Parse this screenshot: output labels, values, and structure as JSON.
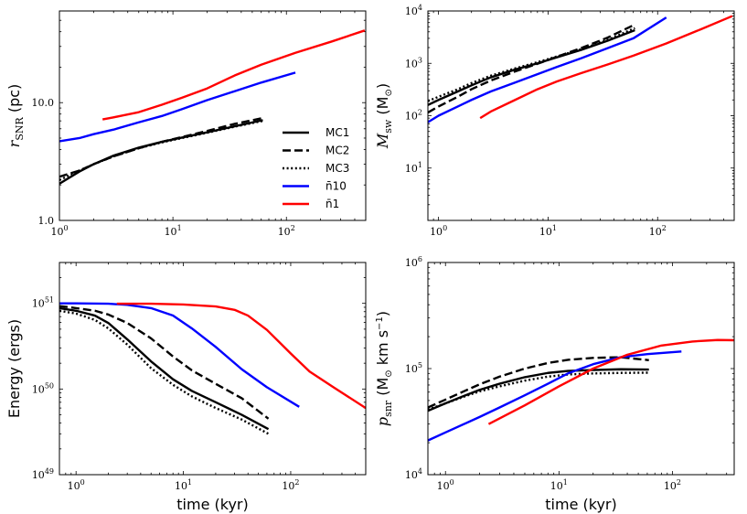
{
  "chart_data": [
    {
      "id": "p1",
      "type": "line",
      "xscale": "log",
      "yscale": "log",
      "xlim": [
        1,
        500
      ],
      "ylim": [
        1,
        60
      ],
      "xlabel": "",
      "ylabel": "r_SNR (pc)",
      "ylabel_parts": {
        "var": "r",
        "sub": "SNR",
        "unit": " (pc)"
      },
      "xticks": [
        {
          "v": 1,
          "b": "10",
          "e": "0"
        },
        {
          "v": 10,
          "b": "10",
          "e": "1"
        },
        {
          "v": 100,
          "b": "10",
          "e": "2"
        }
      ],
      "yticks": [
        {
          "v": 1,
          "t": "1.0"
        },
        {
          "v": 10,
          "t": "10.0"
        }
      ],
      "legend": {
        "position": "center-right",
        "entries": [
          {
            "label": "MC1",
            "color": "#000000",
            "dash": "solid"
          },
          {
            "label": "MC2",
            "color": "#000000",
            "dash": "dashed"
          },
          {
            "label": "MC3",
            "color": "#000000",
            "dash": "dotted"
          },
          {
            "label": "n̄10",
            "color": "#0000ff",
            "dash": "solid"
          },
          {
            "label": "n̄1",
            "color": "#ff0000",
            "dash": "solid"
          }
        ]
      },
      "series": [
        {
          "name": "MC1",
          "color": "#000000",
          "dash": "solid",
          "x": [
            1,
            1.5,
            2,
            3,
            5,
            8,
            12,
            20,
            35,
            62
          ],
          "y": [
            2.05,
            2.6,
            3.0,
            3.55,
            4.15,
            4.65,
            5.05,
            5.6,
            6.3,
            7.1
          ]
        },
        {
          "name": "MC2",
          "color": "#000000",
          "dash": "dashed",
          "x": [
            1,
            1.5,
            2,
            3,
            5,
            8,
            12,
            20,
            35,
            62
          ],
          "y": [
            2.35,
            2.65,
            3.0,
            3.5,
            4.1,
            4.65,
            5.1,
            5.75,
            6.6,
            7.4
          ]
        },
        {
          "name": "MC3",
          "color": "#000000",
          "dash": "dotted",
          "x": [
            1,
            1.5,
            2,
            3,
            5,
            8,
            12,
            20,
            35,
            62
          ],
          "y": [
            2.2,
            2.65,
            3.0,
            3.5,
            4.1,
            4.6,
            5.0,
            5.55,
            6.25,
            7.0
          ]
        },
        {
          "name": "n̄10",
          "color": "#0000ff",
          "dash": "solid",
          "x": [
            1,
            1.5,
            2,
            3,
            5,
            8,
            12,
            20,
            35,
            60,
            120
          ],
          "y": [
            4.7,
            5.0,
            5.4,
            5.9,
            6.8,
            7.7,
            8.8,
            10.5,
            12.5,
            14.8,
            18.0
          ]
        },
        {
          "name": "n̄1",
          "color": "#ff0000",
          "dash": "solid",
          "x": [
            2.4,
            3,
            5,
            8,
            12,
            20,
            35,
            60,
            120,
            250,
            490
          ],
          "y": [
            7.2,
            7.5,
            8.3,
            9.6,
            11.0,
            13.2,
            17.0,
            21.0,
            26.5,
            33.0,
            41.0
          ]
        }
      ]
    },
    {
      "id": "p2",
      "type": "line",
      "xscale": "log",
      "yscale": "log",
      "xlim": [
        0.8,
        500
      ],
      "ylim": [
        1,
        10000
      ],
      "xlabel": "",
      "ylabel": "M_sw (M_⊙)",
      "ylabel_parts": {
        "var": "M",
        "sub": "sw",
        "unit": " (M",
        "sun": "⊙",
        "close": ")"
      },
      "xticks": [
        {
          "v": 1,
          "b": "10",
          "e": "0"
        },
        {
          "v": 10,
          "b": "10",
          "e": "1"
        },
        {
          "v": 100,
          "b": "10",
          "e": "2"
        }
      ],
      "yticks": [
        {
          "v": 10,
          "b": "10",
          "e": "1"
        },
        {
          "v": 100,
          "b": "10",
          "e": "2"
        },
        {
          "v": 1000,
          "b": "10",
          "e": "3"
        },
        {
          "v": 10000,
          "b": "10",
          "e": "4"
        }
      ],
      "series": [
        {
          "name": "MC1",
          "color": "#000000",
          "dash": "solid",
          "x": [
            0.8,
            1,
            1.5,
            2,
            3,
            5,
            8,
            12,
            20,
            35,
            62
          ],
          "y": [
            160,
            200,
            290,
            380,
            540,
            760,
            1000,
            1300,
            1800,
            2700,
            4300
          ]
        },
        {
          "name": "MC2",
          "color": "#000000",
          "dash": "dashed",
          "x": [
            0.8,
            1,
            1.5,
            2,
            3,
            5,
            8,
            12,
            20,
            35,
            62
          ],
          "y": [
            115,
            150,
            230,
            320,
            470,
            700,
            980,
            1330,
            1950,
            3100,
            5500
          ]
        },
        {
          "name": "MC3",
          "color": "#000000",
          "dash": "dotted",
          "x": [
            0.8,
            1,
            1.5,
            2,
            3,
            5,
            8,
            12,
            20,
            35,
            62
          ],
          "y": [
            190,
            230,
            320,
            420,
            580,
            800,
            1050,
            1350,
            1850,
            2800,
            4700
          ]
        },
        {
          "name": "n̄10",
          "color": "#0000ff",
          "dash": "solid",
          "x": [
            0.8,
            1,
            1.5,
            2,
            3,
            5,
            8,
            12,
            20,
            35,
            60,
            120
          ],
          "y": [
            75,
            100,
            150,
            200,
            290,
            430,
            620,
            850,
            1250,
            1950,
            3000,
            7500
          ]
        },
        {
          "name": "n̄1",
          "color": "#ff0000",
          "dash": "solid",
          "x": [
            2.4,
            3,
            5,
            8,
            12,
            20,
            35,
            60,
            120,
            250,
            480
          ],
          "y": [
            90,
            120,
            200,
            320,
            450,
            650,
            950,
            1400,
            2400,
            4500,
            8000
          ]
        }
      ]
    },
    {
      "id": "p3",
      "type": "line",
      "xscale": "log",
      "yscale": "log",
      "xlim": [
        0.7,
        500
      ],
      "ylim": [
        1e+49,
        3e+51
      ],
      "xlabel": "time (kyr)",
      "ylabel": "Energy (ergs)",
      "xticks": [
        {
          "v": 1,
          "b": "10",
          "e": "0"
        },
        {
          "v": 10,
          "b": "10",
          "e": "1"
        },
        {
          "v": 100,
          "b": "10",
          "e": "2"
        }
      ],
      "yticks": [
        {
          "v": 1e+49,
          "b": "10",
          "e": "49"
        },
        {
          "v": 1e+50,
          "b": "10",
          "e": "50"
        },
        {
          "v": 1e+51,
          "b": "10",
          "e": "51"
        }
      ],
      "series": [
        {
          "name": "MC1",
          "color": "#000000",
          "dash": "solid",
          "x": [
            0.7,
            1,
            1.5,
            2,
            3,
            5,
            8,
            12,
            20,
            35,
            62
          ],
          "y": [
            8.8e+50,
            8.2e+50,
            7.2e+50,
            5.9e+50,
            3.8e+50,
            2.1e+50,
            1.3e+50,
            9.5e+49,
            7e+49,
            5e+49,
            3.4e+49
          ]
        },
        {
          "name": "MC2",
          "color": "#000000",
          "dash": "dashed",
          "x": [
            0.7,
            1,
            1.5,
            2,
            3,
            5,
            8,
            12,
            20,
            35,
            62
          ],
          "y": [
            9.3e+50,
            8.8e+50,
            8.2e+50,
            7.4e+50,
            5.9e+50,
            3.9e+50,
            2.4e+50,
            1.65e+50,
            1.15e+50,
            7.8e+49,
            4.5e+49
          ]
        },
        {
          "name": "MC3",
          "color": "#000000",
          "dash": "dotted",
          "x": [
            0.7,
            1,
            1.5,
            2,
            3,
            5,
            8,
            12,
            20,
            35,
            62
          ],
          "y": [
            8.2e+50,
            7.6e+50,
            6.4e+50,
            5.1e+50,
            3.3e+50,
            1.75e+50,
            1.12e+50,
            8.2e+49,
            6e+49,
            4.4e+49,
            3e+49
          ]
        },
        {
          "name": "n̄10",
          "color": "#0000ff",
          "dash": "solid",
          "x": [
            0.7,
            1,
            2,
            3,
            5,
            8,
            12,
            20,
            35,
            60,
            120
          ],
          "y": [
            1e+51,
            1e+51,
            9.9e+50,
            9.6e+50,
            8.8e+50,
            7.2e+50,
            5.1e+50,
            3.1e+50,
            1.7e+50,
            1.05e+50,
            6.2e+49
          ]
        },
        {
          "name": "n̄1",
          "color": "#ff0000",
          "dash": "solid",
          "x": [
            2.4,
            5,
            10,
            20,
            30,
            40,
            60,
            100,
            150,
            250,
            500
          ],
          "y": [
            9.9e+50,
            9.9e+50,
            9.7e+50,
            9.2e+50,
            8.4e+50,
            7.2e+50,
            4.9e+50,
            2.6e+50,
            1.6e+50,
            1.05e+50,
            6e+49
          ]
        }
      ]
    },
    {
      "id": "p4",
      "type": "line",
      "xscale": "log",
      "yscale": "log",
      "xlim": [
        0.7,
        350
      ],
      "ylim": [
        10000,
        1000000
      ],
      "xlabel": "time (kyr)",
      "ylabel": "p_snr (M_⊙ km s^-1)",
      "ylabel_parts": {
        "var": "p",
        "sub": "snr",
        "unit": " (M",
        "sun": "⊙",
        "rest": " km s",
        "sup": "−1",
        "close": ")"
      },
      "xticks": [
        {
          "v": 1,
          "b": "10",
          "e": "0"
        },
        {
          "v": 10,
          "b": "10",
          "e": "1"
        },
        {
          "v": 100,
          "b": "10",
          "e": "2"
        }
      ],
      "yticks": [
        {
          "v": 10000,
          "b": "10",
          "e": "4"
        },
        {
          "v": 100000,
          "b": "10",
          "e": "5"
        },
        {
          "v": 1000000,
          "b": "10",
          "e": "6"
        }
      ],
      "series": [
        {
          "name": "MC1",
          "color": "#000000",
          "dash": "solid",
          "x": [
            0.7,
            1,
            1.5,
            2,
            3,
            5,
            8,
            12,
            20,
            35,
            62
          ],
          "y": [
            40000,
            47000,
            56000,
            63000,
            72000,
            83000,
            91000,
            95000,
            97000,
            98500,
            98000
          ]
        },
        {
          "name": "MC2",
          "color": "#000000",
          "dash": "dashed",
          "x": [
            0.7,
            1,
            1.5,
            2,
            3,
            5,
            8,
            12,
            20,
            35,
            62
          ],
          "y": [
            43000,
            51000,
            62000,
            71000,
            84000,
            100000,
            113000,
            121000,
            126000,
            128000,
            120000
          ]
        },
        {
          "name": "MC3",
          "color": "#000000",
          "dash": "dotted",
          "x": [
            0.7,
            1,
            1.5,
            2,
            3,
            5,
            8,
            12,
            20,
            35,
            62
          ],
          "y": [
            41000,
            47000,
            55000,
            61000,
            68000,
            77000,
            84000,
            88000,
            90000,
            91000,
            91500
          ]
        },
        {
          "name": "n̄10",
          "color": "#0000ff",
          "dash": "solid",
          "x": [
            0.7,
            1,
            2,
            3,
            5,
            8,
            12,
            20,
            35,
            60,
            120
          ],
          "y": [
            21000,
            25000,
            35000,
            43000,
            56000,
            72000,
            90000,
            110000,
            128000,
            137000,
            145000
          ]
        },
        {
          "name": "n̄1",
          "color": "#ff0000",
          "dash": "solid",
          "x": [
            2.4,
            5,
            10,
            20,
            40,
            80,
            150,
            250,
            350
          ],
          "y": [
            30000,
            45000,
            68000,
            100000,
            135000,
            165000,
            180000,
            186000,
            185000
          ]
        }
      ]
    }
  ]
}
